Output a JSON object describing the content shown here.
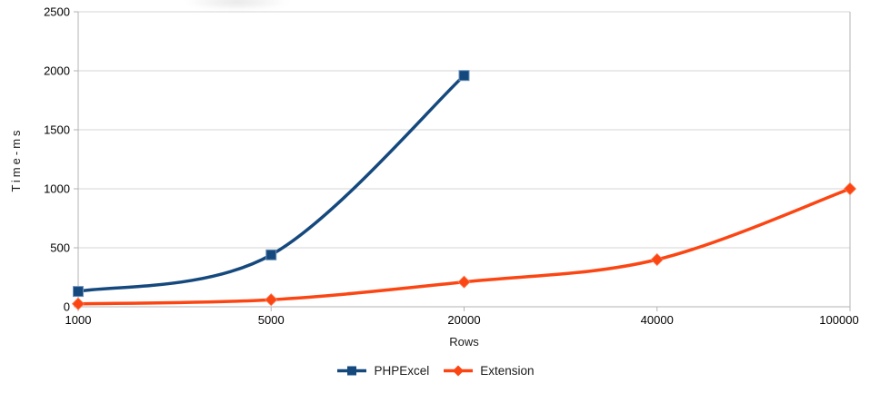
{
  "chart_data": {
    "type": "line",
    "title": "",
    "xlabel": "Rows",
    "ylabel": "Time-ms",
    "categories": [
      "1000",
      "5000",
      "20000",
      "40000",
      "100000"
    ],
    "series": [
      {
        "name": "PHPExcel",
        "values": [
          130,
          440,
          1960
        ],
        "color": "#15497d",
        "marker_edge_color": "#6d92bb",
        "marker": "square"
      },
      {
        "name": "Extension",
        "values": [
          25,
          60,
          210,
          400,
          1000
        ],
        "color": "#fb4614",
        "marker_edge_color": "#fc7a52",
        "marker": "diamond"
      }
    ],
    "ylim": [
      0,
      2500
    ],
    "y_ticks": [
      0,
      500,
      1000,
      1500,
      2000,
      2500
    ],
    "grid": true,
    "smooth": true,
    "legend_position": "bottom-center",
    "grid_color": "#d4d4d4",
    "axis_color": "#b3b3b3",
    "tick_label_color": "#000000"
  }
}
